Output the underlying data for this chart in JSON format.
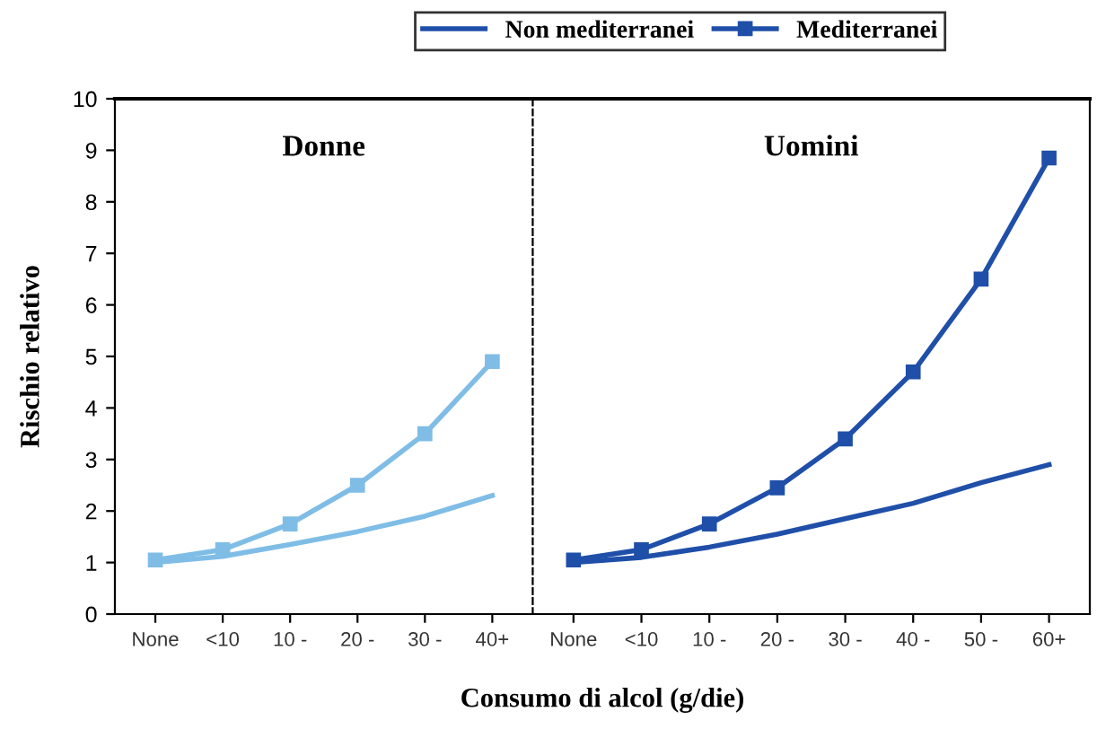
{
  "chart_data": [
    {
      "type": "line",
      "title": "Donne",
      "xlabel": "Consumo di alcol (g/die)",
      "ylabel": "Rischio relativo",
      "categories": [
        "None",
        "<10",
        "10 -",
        "20 -",
        "30 -",
        "40+"
      ],
      "series": [
        {
          "color": "#7fbde6",
          "marker": "none",
          "values": [
            1.0,
            1.12,
            1.35,
            1.6,
            1.9,
            2.3
          ]
        },
        {
          "color": "#7fbde6",
          "marker": "square",
          "values": [
            1.05,
            1.25,
            1.75,
            2.5,
            3.5,
            4.9
          ]
        }
      ],
      "ylim": [
        0,
        10
      ],
      "yticks": [
        0,
        1,
        2,
        3,
        4,
        5,
        6,
        7,
        8,
        9,
        10
      ]
    },
    {
      "type": "line",
      "title": "Uomini",
      "categories": [
        "None",
        "<10",
        "10 -",
        "20 -",
        "30 -",
        "40 -",
        "50 -",
        "60+"
      ],
      "series": [
        {
          "name": "Non mediterranei",
          "color": "#1f4fa8",
          "marker": "none",
          "values": [
            1.0,
            1.1,
            1.3,
            1.55,
            1.85,
            2.15,
            2.55,
            2.9
          ]
        },
        {
          "name": "Mediterranei",
          "color": "#1f4fa8",
          "marker": "square",
          "values": [
            1.05,
            1.25,
            1.75,
            2.45,
            3.4,
            4.7,
            6.5,
            8.85
          ]
        }
      ],
      "ylim": [
        0,
        10
      ],
      "tick_labels": "x",
      "legend": "top"
    }
  ]
}
